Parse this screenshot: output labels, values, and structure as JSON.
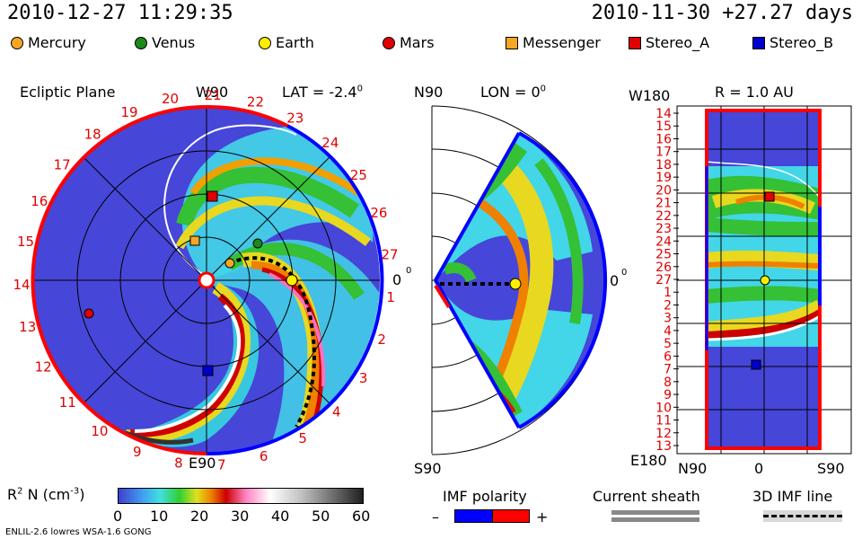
{
  "header": {
    "datetime": "2010-12-27 11:29:35",
    "run_info": "2010-11-30 +27.27 days"
  },
  "legend": [
    {
      "label": "Mercury",
      "shape": "circle",
      "color": "#f5a623"
    },
    {
      "label": "Venus",
      "shape": "circle",
      "color": "#1a8a1a"
    },
    {
      "label": "Earth",
      "shape": "circle",
      "color": "#ffee00"
    },
    {
      "label": "Mars",
      "shape": "circle",
      "color": "#e00000"
    },
    {
      "label": "Messenger",
      "shape": "square",
      "color": "#f5a623"
    },
    {
      "label": "Stereo_A",
      "shape": "square",
      "color": "#e00000"
    },
    {
      "label": "Stereo_B",
      "shape": "square",
      "color": "#0000cc"
    }
  ],
  "panel_ecliptic": {
    "title": "Ecliptic Plane",
    "top_label": "W90",
    "bottom_label": "E90",
    "right_label": "0",
    "lat_label": "LAT = -2.4",
    "lat_sup": "0",
    "carrington_ticks": [
      "19",
      "20",
      "21",
      "22",
      "23",
      "24",
      "25",
      "26",
      "27",
      "1",
      "2",
      "3",
      "4",
      "5",
      "6",
      "7",
      "8",
      "9",
      "10",
      "11",
      "12",
      "13",
      "14",
      "15",
      "16",
      "17",
      "18"
    ]
  },
  "panel_meridional": {
    "top_label": "N90",
    "bottom_label": "S90",
    "lon_label": "LON = 0",
    "lon_sup": "0",
    "right_label": "0"
  },
  "panel_radial": {
    "title": "R = 1.0 AU",
    "top_left_label": "W180",
    "bottom_left_label": "E180",
    "x_labels": [
      "N90",
      "0",
      "S90"
    ],
    "y_ticks": [
      "14",
      "15",
      "16",
      "17",
      "18",
      "19",
      "20",
      "21",
      "22",
      "23",
      "24",
      "25",
      "26",
      "27",
      "1",
      "2",
      "3",
      "4",
      "5",
      "6",
      "7",
      "8",
      "9",
      "10",
      "11",
      "12",
      "13"
    ]
  },
  "colorbar": {
    "label": "R",
    "label_sup1": "2",
    "label_mid": " N (cm",
    "label_sup2": "-3",
    "label_end": ")",
    "ticks": [
      "0",
      "10",
      "20",
      "30",
      "40",
      "50",
      "60"
    ]
  },
  "imf": {
    "title": "IMF polarity",
    "minus": "–",
    "plus": "+",
    "neg_color": "#0000ff",
    "pos_color": "#ff0000"
  },
  "sheath": {
    "title": "Current sheath"
  },
  "imf_line": {
    "title": "3D IMF line"
  },
  "footer": {
    "model": "ENLIL-2.6 lowres WSA-1.6 GONG"
  }
}
